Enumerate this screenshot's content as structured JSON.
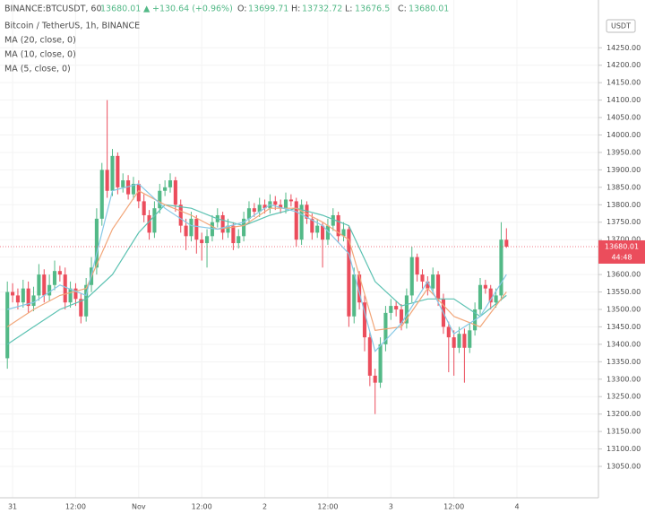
{
  "chart_data": {
    "type": "candlestick",
    "symbol": "BINANCE:BTCUSDT, 60",
    "change": "+130.64 (+0.96%)",
    "ohlc_prefixes": [
      "O:",
      "H:",
      "L:",
      "C:"
    ],
    "subtitle": "Bitcoin / TetherUS, 1h, BINANCE",
    "currency": "USDT",
    "countdown": "44:48",
    "up_color": "#53b987",
    "down_color": "#eb4d5c",
    "grid": true,
    "xlim": [
      -1.4,
      112
    ],
    "ylim": [
      12960,
      14387
    ],
    "xticks": [
      {
        "value": 1,
        "label": "31"
      },
      {
        "value": 13,
        "label": "12:00"
      },
      {
        "value": 25,
        "label": "Nov"
      },
      {
        "value": 37,
        "label": "12:00"
      },
      {
        "value": 49,
        "label": "2"
      },
      {
        "value": 61,
        "label": "12:00"
      },
      {
        "value": 73,
        "label": "3"
      },
      {
        "value": 85,
        "label": "12:00"
      },
      {
        "value": 97,
        "label": "4"
      }
    ],
    "yticks": [
      {
        "value": 13050,
        "label": "13050.00"
      },
      {
        "value": 13100,
        "label": "13100.00"
      },
      {
        "value": 13150,
        "label": "13150.00"
      },
      {
        "value": 13200,
        "label": "13200.00"
      },
      {
        "value": 13250,
        "label": "13250.00"
      },
      {
        "value": 13300,
        "label": "13300.00"
      },
      {
        "value": 13350,
        "label": "13350.00"
      },
      {
        "value": 13400,
        "label": "13400.00"
      },
      {
        "value": 13450,
        "label": "13450.00"
      },
      {
        "value": 13500,
        "label": "13500.00"
      },
      {
        "value": 13550,
        "label": "13550.00"
      },
      {
        "value": 13600,
        "label": "13600.00"
      },
      {
        "value": 13650,
        "label": "13650.00"
      },
      {
        "value": 13700,
        "label": "13700.00"
      },
      {
        "value": 13750,
        "label": "13750.00"
      },
      {
        "value": 13800,
        "label": "13800.00"
      },
      {
        "value": 13850,
        "label": "13850.00"
      },
      {
        "value": 13900,
        "label": "13900.00"
      },
      {
        "value": 13950,
        "label": "13950.00"
      },
      {
        "value": 14000,
        "label": "14000.00"
      },
      {
        "value": 14050,
        "label": "14050.00"
      },
      {
        "value": 14100,
        "label": "14100.00"
      },
      {
        "value": 14150,
        "label": "14150.00"
      },
      {
        "value": 14200,
        "label": "14200.00"
      },
      {
        "value": 14250,
        "label": "14250.00"
      }
    ],
    "open": [
      13360,
      13550,
      13540,
      13520,
      13560,
      13510,
      13540,
      13600,
      13540,
      13570,
      13610,
      13600,
      13520,
      13560,
      13530,
      13480,
      13570,
      13620,
      13760,
      13900,
      13840,
      13940,
      13850,
      13870,
      13830,
      13860,
      13810,
      13770,
      13720,
      13790,
      13840,
      13850,
      13870,
      13800,
      13740,
      13710,
      13760,
      13700,
      13690,
      13710,
      13750,
      13770,
      13720,
      13740,
      13690,
      13710,
      13760,
      13790,
      13780,
      13800,
      13790,
      13810,
      13800,
      13790,
      13815,
      13810,
      13700,
      13800,
      13760,
      13720,
      13740,
      13700,
      13740,
      13770,
      13710,
      13730,
      13480,
      13600,
      13520,
      13420,
      13310,
      13290,
      13400,
      13490,
      13510,
      13500,
      13460,
      13540,
      13650,
      13600,
      13580,
      13560,
      13600,
      13530,
      13450,
      13420,
      13390,
      13430,
      13390,
      13440,
      13500,
      13570,
      13560,
      13520,
      13540,
      13699.71
    ],
    "high": [
      13580,
      13575,
      13560,
      13585,
      13580,
      13565,
      13630,
      13615,
      13600,
      13640,
      13625,
      13620,
      13580,
      13575,
      13545,
      13590,
      13650,
      13790,
      13920,
      14100,
      13960,
      13950,
      13890,
      13885,
      13880,
      13870,
      13830,
      13785,
      13810,
      13860,
      13870,
      13890,
      13880,
      13815,
      13760,
      13780,
      13770,
      13720,
      13730,
      13770,
      13790,
      13780,
      13760,
      13750,
      13730,
      13780,
      13810,
      13805,
      13820,
      13815,
      13830,
      13825,
      13815,
      13835,
      13830,
      13820,
      13815,
      13810,
      13775,
      13760,
      13750,
      13760,
      13790,
      13780,
      13750,
      13740,
      13620,
      13610,
      13540,
      13435,
      13330,
      13420,
      13510,
      13530,
      13525,
      13515,
      13560,
      13680,
      13660,
      13615,
      13595,
      13620,
      13610,
      13545,
      13465,
      13440,
      13450,
      13445,
      13460,
      13520,
      13590,
      13585,
      13570,
      13560,
      13750,
      13732.72
    ],
    "low": [
      13330,
      13520,
      13500,
      13505,
      13490,
      13495,
      13525,
      13520,
      13525,
      13555,
      13580,
      13500,
      13505,
      13510,
      13460,
      13465,
      13550,
      13600,
      13740,
      13820,
      13825,
      13830,
      13835,
      13815,
      13815,
      13790,
      13750,
      13700,
      13705,
      13775,
      13825,
      13835,
      13780,
      13720,
      13670,
      13695,
      13660,
      13640,
      13620,
      13695,
      13735,
      13700,
      13705,
      13670,
      13675,
      13695,
      13745,
      13765,
      13765,
      13775,
      13775,
      13785,
      13775,
      13775,
      13795,
      13680,
      13685,
      13745,
      13700,
      13705,
      13620,
      13685,
      13725,
      13690,
      13695,
      13450,
      13460,
      13500,
      13380,
      13280,
      13200,
      13275,
      13380,
      13470,
      13480,
      13440,
      13445,
      13520,
      13580,
      13560,
      13540,
      13545,
      13510,
      13430,
      13320,
      13310,
      13375,
      13290,
      13375,
      13425,
      13485,
      13545,
      13500,
      13505,
      13525,
      13676.5
    ],
    "close": [
      13550,
      13540,
      13520,
      13560,
      13510,
      13540,
      13600,
      13540,
      13570,
      13610,
      13600,
      13520,
      13560,
      13530,
      13480,
      13570,
      13620,
      13760,
      13900,
      13840,
      13940,
      13850,
      13870,
      13830,
      13860,
      13810,
      13770,
      13720,
      13790,
      13840,
      13850,
      13870,
      13800,
      13740,
      13710,
      13760,
      13700,
      13690,
      13710,
      13750,
      13770,
      13720,
      13740,
      13690,
      13710,
      13760,
      13790,
      13780,
      13800,
      13790,
      13810,
      13800,
      13790,
      13815,
      13810,
      13700,
      13800,
      13760,
      13720,
      13740,
      13700,
      13740,
      13770,
      13710,
      13730,
      13480,
      13600,
      13520,
      13420,
      13310,
      13290,
      13400,
      13490,
      13510,
      13500,
      13460,
      13540,
      13650,
      13600,
      13580,
      13560,
      13600,
      13530,
      13450,
      13420,
      13390,
      13430,
      13390,
      13440,
      13500,
      13570,
      13560,
      13520,
      13540,
      13700,
      13680.01
    ],
    "series": [
      {
        "name": "MA (20, close, 0)",
        "color": "#5cc2b2",
        "x": [
          0,
          5,
          10,
          15,
          20,
          25,
          30,
          35,
          40,
          45,
          50,
          55,
          60,
          65,
          70,
          75,
          80,
          85,
          90,
          95
        ],
        "values": [
          13400,
          13450,
          13500,
          13530,
          13600,
          13720,
          13800,
          13790,
          13760,
          13740,
          13770,
          13790,
          13770,
          13740,
          13580,
          13510,
          13530,
          13530,
          13480,
          13540
        ]
      },
      {
        "name": "MA (10, close, 0)",
        "color": "#f2a679",
        "x": [
          0,
          5,
          10,
          15,
          20,
          25,
          30,
          35,
          40,
          45,
          50,
          55,
          60,
          65,
          70,
          75,
          80,
          85,
          90,
          95
        ],
        "values": [
          13450,
          13500,
          13540,
          13560,
          13730,
          13840,
          13800,
          13770,
          13730,
          13740,
          13790,
          13790,
          13750,
          13700,
          13440,
          13450,
          13560,
          13480,
          13450,
          13550
        ]
      },
      {
        "name": "MA (5, close, 0)",
        "color": "#86c8e6",
        "x": [
          0,
          5,
          10,
          15,
          20,
          25,
          30,
          35,
          40,
          45,
          50,
          55,
          60,
          65,
          70,
          75,
          80,
          85,
          90,
          95
        ],
        "values": [
          13500,
          13520,
          13570,
          13540,
          13840,
          13860,
          13790,
          13740,
          13730,
          13750,
          13800,
          13780,
          13740,
          13660,
          13380,
          13460,
          13580,
          13430,
          13480,
          13600
        ]
      }
    ]
  }
}
